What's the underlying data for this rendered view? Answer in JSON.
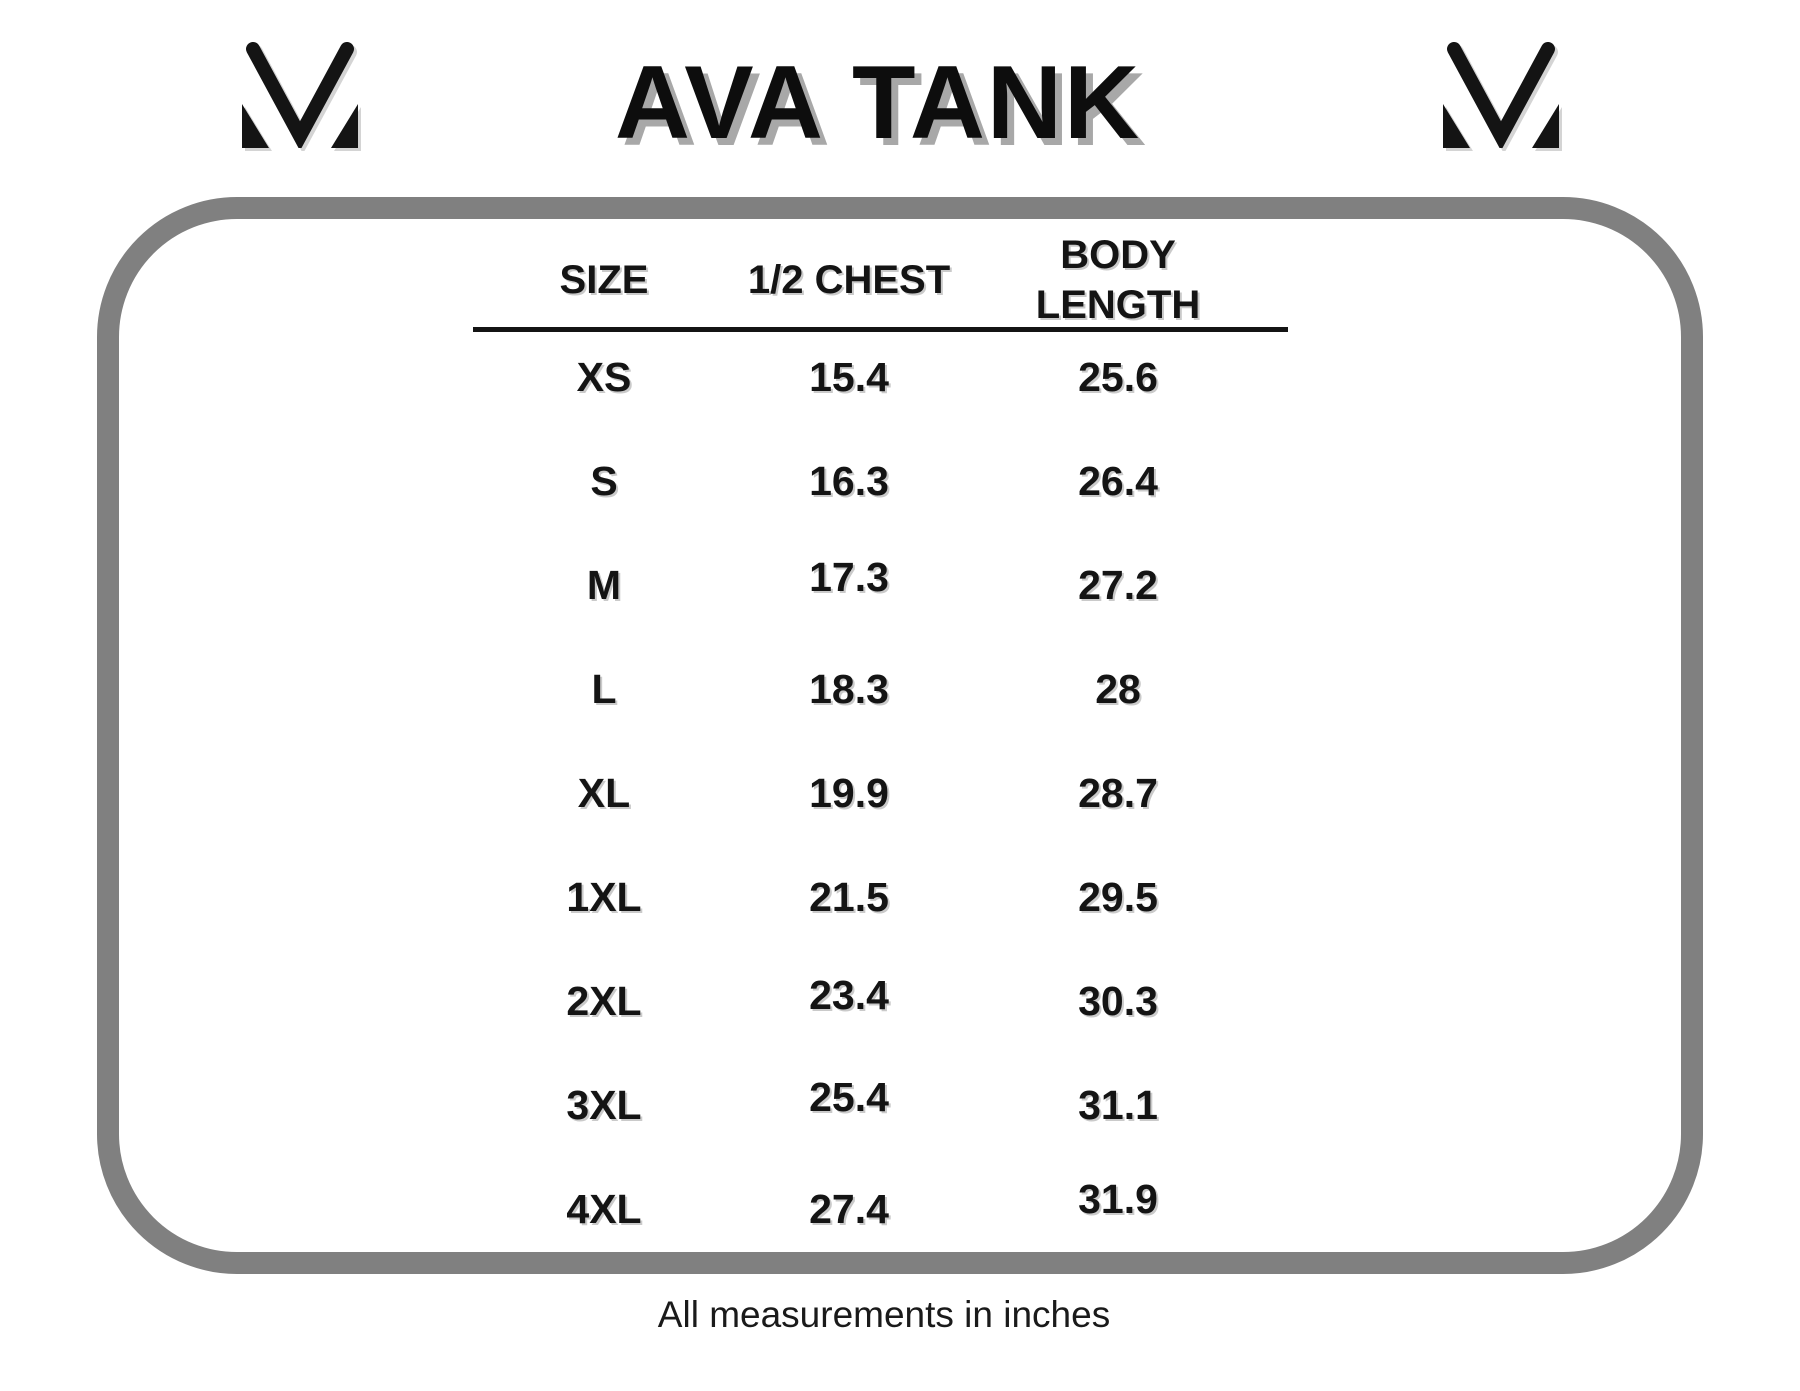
{
  "title": "AVA TANK",
  "brand": {
    "left_logo_icon": "mv-monogram-logo",
    "right_logo_icon": "mv-monogram-logo"
  },
  "size_chart": {
    "columns": [
      "SIZE",
      "1/2 CHEST",
      "BODY LENGTH"
    ],
    "rows": [
      {
        "size": "XS",
        "half_chest": "15.4",
        "body_length": "25.6"
      },
      {
        "size": "S",
        "half_chest": "16.3",
        "body_length": "26.4"
      },
      {
        "size": "M",
        "half_chest": "17.3",
        "body_length": "27.2"
      },
      {
        "size": "L",
        "half_chest": "18.3",
        "body_length": "28"
      },
      {
        "size": "XL",
        "half_chest": "19.9",
        "body_length": "28.7"
      },
      {
        "size": "1XL",
        "half_chest": "21.5",
        "body_length": "29.5"
      },
      {
        "size": "2XL",
        "half_chest": "23.4",
        "body_length": "30.3"
      },
      {
        "size": "3XL",
        "half_chest": "25.4",
        "body_length": "31.1"
      },
      {
        "size": "4XL",
        "half_chest": "27.4",
        "body_length": "31.9"
      }
    ]
  },
  "footnote": "All measurements in inches",
  "colors": {
    "frame_gray": "#808080",
    "text_black": "#141414",
    "title_shadow_gray": "#a8a8a8"
  },
  "chart_data": {
    "type": "table",
    "title": "AVA TANK",
    "columns": [
      "SIZE",
      "1/2 CHEST",
      "BODY LENGTH"
    ],
    "rows": [
      [
        "XS",
        15.4,
        25.6
      ],
      [
        "S",
        16.3,
        26.4
      ],
      [
        "M",
        17.3,
        27.2
      ],
      [
        "L",
        18.3,
        28
      ],
      [
        "XL",
        19.9,
        28.7
      ],
      [
        "1XL",
        21.5,
        29.5
      ],
      [
        "2XL",
        23.4,
        30.3
      ],
      [
        "3XL",
        25.4,
        31.1
      ],
      [
        "4XL",
        27.4,
        31.9
      ]
    ],
    "note": "All measurements in inches",
    "units": "inches"
  }
}
